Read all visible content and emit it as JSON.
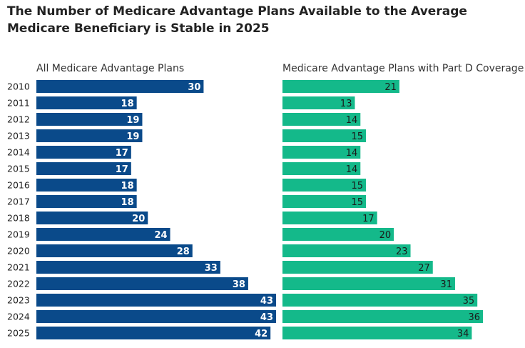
{
  "title": "The Number of Medicare Advantage Plans Available to the Average Medicare Beneficiary is Stable in 2025",
  "colors": {
    "left_bar": "#0a4a8a",
    "right_bar": "#14b98a"
  },
  "chart_data": [
    {
      "type": "bar",
      "orientation": "horizontal",
      "title": "All Medicare Advantage Plans",
      "categories": [
        "2010",
        "2011",
        "2012",
        "2013",
        "2014",
        "2015",
        "2016",
        "2017",
        "2018",
        "2019",
        "2020",
        "2021",
        "2022",
        "2023",
        "2024",
        "2025"
      ],
      "values": [
        30,
        18,
        19,
        19,
        17,
        17,
        18,
        18,
        20,
        24,
        28,
        33,
        38,
        43,
        43,
        42
      ],
      "xlim": [
        0,
        43
      ]
    },
    {
      "type": "bar",
      "orientation": "horizontal",
      "title": "Medicare Advantage Plans with Part D Coverage",
      "categories": [
        "2010",
        "2011",
        "2012",
        "2013",
        "2014",
        "2015",
        "2016",
        "2017",
        "2018",
        "2019",
        "2020",
        "2021",
        "2022",
        "2023",
        "2024",
        "2025"
      ],
      "values": [
        21,
        13,
        14,
        15,
        14,
        14,
        15,
        15,
        17,
        20,
        23,
        27,
        31,
        35,
        36,
        34
      ],
      "xlim": [
        0,
        43
      ]
    }
  ]
}
